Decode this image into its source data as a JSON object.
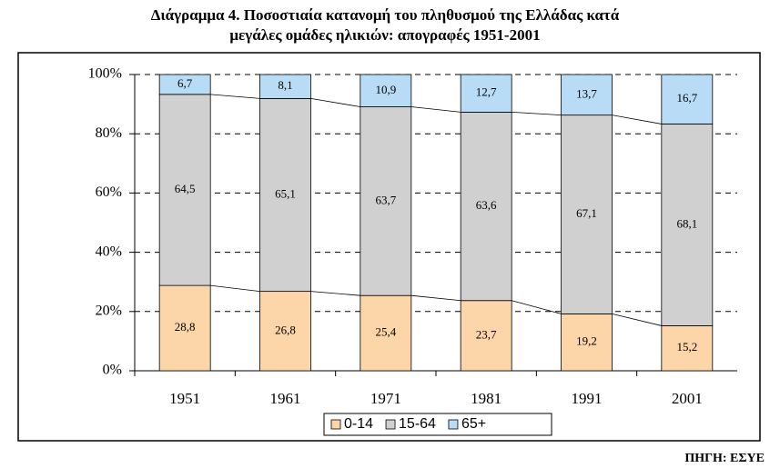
{
  "chart_data": {
    "type": "stacked_bar",
    "title": [
      "Διάγραμμα 4. Ποσοστιαία κατανομή του πληθυσμού της Ελλάδας κατά",
      "μεγάλες ομάδες ηλικιών: απογραφές 1951-2001"
    ],
    "source": "ΠΗΓΗ: ΕΣΥΕ",
    "categories": [
      "1951",
      "1961",
      "1971",
      "1981",
      "1991",
      "2001"
    ],
    "series": [
      {
        "name": "0-14",
        "color": "#fcd5a8",
        "values": [
          28.8,
          26.8,
          25.4,
          23.7,
          19.2,
          15.2
        ],
        "value_labels": [
          "28,8",
          "26,8",
          "25,4",
          "23,7",
          "19,2",
          "15,2"
        ]
      },
      {
        "name": "15-64",
        "color": "#d0d0d0",
        "values": [
          64.5,
          65.1,
          63.7,
          63.6,
          67.1,
          68.1
        ],
        "value_labels": [
          "64,5",
          "65,1",
          "63,7",
          "63,6",
          "67,1",
          "68,1"
        ]
      },
      {
        "name": "65+",
        "color": "#b8dcf5",
        "values": [
          6.7,
          8.1,
          10.9,
          12.7,
          13.7,
          16.7
        ],
        "value_labels": [
          "6,7",
          "8,1",
          "10,9",
          "12,7",
          "13,7",
          "16,7"
        ]
      }
    ],
    "ylim": [
      0,
      100
    ],
    "yticks": [
      {
        "value": 0,
        "label": "0%"
      },
      {
        "value": 20,
        "label": "20%"
      },
      {
        "value": 40,
        "label": "40%"
      },
      {
        "value": 60,
        "label": "60%"
      },
      {
        "value": 80,
        "label": "80%"
      },
      {
        "value": 100,
        "label": "100%"
      }
    ],
    "grid": true,
    "legend": "bottom"
  }
}
